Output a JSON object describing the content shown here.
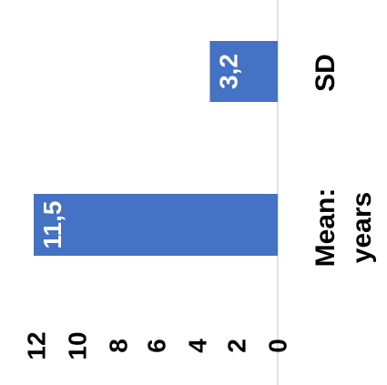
{
  "chart_data": {
    "type": "bar",
    "orientation": "horizontal",
    "categories": [
      "Mean: years",
      "SD"
    ],
    "category_lines": [
      [
        "Mean:",
        "years"
      ],
      [
        "SD"
      ]
    ],
    "values": [
      11.5,
      3.2
    ],
    "data_labels": [
      "11,5",
      "3,2"
    ],
    "title": "",
    "xlabel": "",
    "ylabel": "",
    "xlim": [
      0,
      12
    ],
    "ticks": [
      0,
      2,
      4,
      6,
      8,
      10,
      12
    ],
    "tick_labels": [
      "0",
      "2",
      "4",
      "6",
      "8",
      "10",
      "12"
    ],
    "grid": false,
    "legend": "none",
    "rotation": "rotated 90 degrees counter-clockwise",
    "bar_color": "#4472C4",
    "axis_color": "#D9D9D9"
  }
}
